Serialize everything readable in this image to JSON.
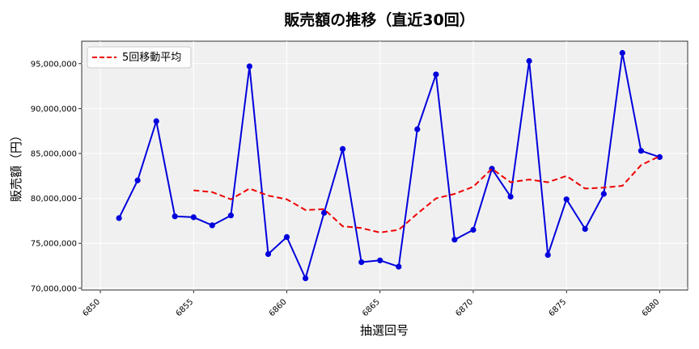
{
  "chart_data": {
    "type": "line",
    "title": "販売額の推移（直近30回）",
    "xlabel": "抽選回号",
    "ylabel": "販売額（円）",
    "xlim": [
      6849.0,
      6881.5
    ],
    "ylim": [
      69800000,
      97500000
    ],
    "grid": true,
    "legend_position": "top-left",
    "x_ticks": [
      6850,
      6855,
      6860,
      6865,
      6870,
      6875,
      6880
    ],
    "y_ticks": [
      {
        "value": 70000000,
        "label": "70,000,000"
      },
      {
        "value": 75000000,
        "label": "75,000,000"
      },
      {
        "value": 80000000,
        "label": "80,000,000"
      },
      {
        "value": 85000000,
        "label": "85,000,000"
      },
      {
        "value": 90000000,
        "label": "90,000,000"
      },
      {
        "value": 95000000,
        "label": "95,000,000"
      }
    ],
    "x": [
      6851,
      6852,
      6853,
      6854,
      6855,
      6856,
      6857,
      6858,
      6859,
      6860,
      6861,
      6862,
      6863,
      6864,
      6865,
      6866,
      6867,
      6868,
      6869,
      6870,
      6871,
      6872,
      6873,
      6874,
      6875,
      6876,
      6877,
      6878,
      6879,
      6880
    ],
    "series": [
      {
        "name": "",
        "color": "#0000dd",
        "style": "solid-with-markers",
        "values": [
          77800000,
          82000000,
          88600000,
          78000000,
          77900000,
          77000000,
          78100000,
          94700000,
          73800000,
          75700000,
          71100000,
          78400000,
          85500000,
          72900000,
          73100000,
          72400000,
          87700000,
          93800000,
          75400000,
          76500000,
          83300000,
          80200000,
          95300000,
          73700000,
          79900000,
          76600000,
          80500000,
          96200000,
          85300000,
          84600000
        ]
      },
      {
        "name": "5回移動平均",
        "color": "#ee0000",
        "style": "dashed",
        "values": [
          null,
          null,
          null,
          null,
          80900000,
          80700000,
          79900000,
          81100000,
          80300000,
          79900000,
          78700000,
          78800000,
          76900000,
          76700000,
          76200000,
          76500000,
          78300000,
          80000000,
          80500000,
          81300000,
          83300000,
          81800000,
          82100000,
          81800000,
          82500000,
          81100000,
          81200000,
          81400000,
          83700000,
          84700000
        ]
      }
    ]
  }
}
